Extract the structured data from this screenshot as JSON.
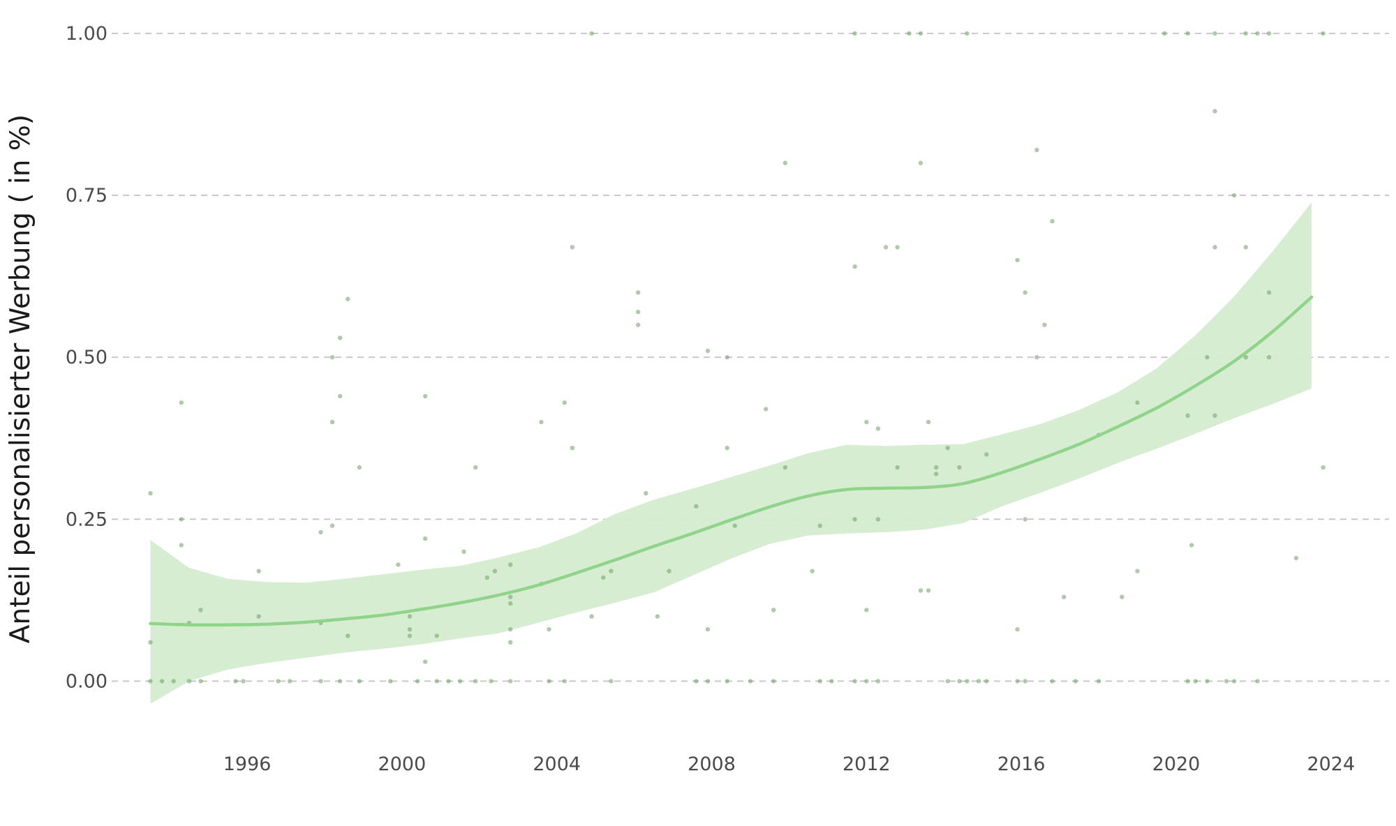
{
  "chart_data": {
    "type": "scatter",
    "title": "",
    "xlabel": "",
    "ylabel": "Anteil personalisierter Werbung ( in %)",
    "xlim": [
      1992.5,
      2025.5
    ],
    "ylim": [
      -0.09,
      1.03
    ],
    "x_ticks": [
      1996,
      2000,
      2004,
      2008,
      2012,
      2016,
      2020,
      2024
    ],
    "x_tick_labels": [
      "1996",
      "2000",
      "2004",
      "2008",
      "2012",
      "2016",
      "2020",
      "2024"
    ],
    "y_ticks": [
      0,
      0.25,
      0.5,
      0.75,
      1.0
    ],
    "y_tick_labels": [
      "0.00",
      "0.25",
      "0.50",
      "0.75",
      "1.00"
    ],
    "grid": "horizontal dashed",
    "legend": "none",
    "colors": {
      "points": "#6e9e64",
      "smooth_line": "#8fd48a",
      "confidence_band": "#d4ecd0",
      "grid": "#c8c8c8"
    },
    "points": [
      {
        "x": 1993.5,
        "y": 0.29
      },
      {
        "x": 1993.5,
        "y": 0.06
      },
      {
        "x": 1993.5,
        "y": 0
      },
      {
        "x": 1993.8,
        "y": 0
      },
      {
        "x": 1994.1,
        "y": 0
      },
      {
        "x": 1994.3,
        "y": 0.43
      },
      {
        "x": 1994.3,
        "y": 0.25
      },
      {
        "x": 1994.3,
        "y": 0.21
      },
      {
        "x": 1994.5,
        "y": 0.09
      },
      {
        "x": 1994.5,
        "y": 0
      },
      {
        "x": 1994.8,
        "y": 0.11
      },
      {
        "x": 1994.8,
        "y": 0
      },
      {
        "x": 1995.7,
        "y": 0
      },
      {
        "x": 1995.9,
        "y": 0
      },
      {
        "x": 1996.3,
        "y": 0.17
      },
      {
        "x": 1996.3,
        "y": 0.1
      },
      {
        "x": 1996.8,
        "y": 0
      },
      {
        "x": 1997.1,
        "y": 0
      },
      {
        "x": 1997.9,
        "y": 0.23
      },
      {
        "x": 1997.9,
        "y": 0.09
      },
      {
        "x": 1997.9,
        "y": 0
      },
      {
        "x": 1998.2,
        "y": 0.5
      },
      {
        "x": 1998.2,
        "y": 0.4
      },
      {
        "x": 1998.2,
        "y": 0.24
      },
      {
        "x": 1998.4,
        "y": 0.53
      },
      {
        "x": 1998.4,
        "y": 0.44
      },
      {
        "x": 1998.4,
        "y": 0
      },
      {
        "x": 1998.6,
        "y": 0.59
      },
      {
        "x": 1998.6,
        "y": 0.07
      },
      {
        "x": 1998.9,
        "y": 0.33
      },
      {
        "x": 1998.9,
        "y": 0
      },
      {
        "x": 1999.7,
        "y": 0
      },
      {
        "x": 1999.9,
        "y": 0.18
      },
      {
        "x": 2000.2,
        "y": 0.1
      },
      {
        "x": 2000.2,
        "y": 0.08
      },
      {
        "x": 2000.2,
        "y": 0.07
      },
      {
        "x": 2000.4,
        "y": 0
      },
      {
        "x": 2000.6,
        "y": 0.44
      },
      {
        "x": 2000.6,
        "y": 0.22
      },
      {
        "x": 2000.6,
        "y": 0.03
      },
      {
        "x": 2000.9,
        "y": 0.07
      },
      {
        "x": 2000.9,
        "y": 0
      },
      {
        "x": 2001.2,
        "y": 0
      },
      {
        "x": 2001.5,
        "y": 0
      },
      {
        "x": 2001.6,
        "y": 0.2
      },
      {
        "x": 2001.9,
        "y": 0.33
      },
      {
        "x": 2001.9,
        "y": 0
      },
      {
        "x": 2002.2,
        "y": 0.16
      },
      {
        "x": 2002.4,
        "y": 0.17
      },
      {
        "x": 2002.3,
        "y": 0
      },
      {
        "x": 2002.8,
        "y": 0.18
      },
      {
        "x": 2002.8,
        "y": 0.13
      },
      {
        "x": 2002.8,
        "y": 0.12
      },
      {
        "x": 2002.8,
        "y": 0.08
      },
      {
        "x": 2002.8,
        "y": 0.06
      },
      {
        "x": 2002.8,
        "y": 0
      },
      {
        "x": 2003.6,
        "y": 0.4
      },
      {
        "x": 2003.6,
        "y": 0.15
      },
      {
        "x": 2003.8,
        "y": 0.08
      },
      {
        "x": 2003.8,
        "y": 0
      },
      {
        "x": 2004.2,
        "y": 0.43
      },
      {
        "x": 2004.2,
        "y": 0
      },
      {
        "x": 2004.4,
        "y": 0.67
      },
      {
        "x": 2004.4,
        "y": 0.36
      },
      {
        "x": 2004.9,
        "y": 1.0
      },
      {
        "x": 2004.9,
        "y": 0.1
      },
      {
        "x": 2005.2,
        "y": 0.16
      },
      {
        "x": 2005.4,
        "y": 0.17
      },
      {
        "x": 2005.4,
        "y": 0
      },
      {
        "x": 2006.1,
        "y": 0.6
      },
      {
        "x": 2006.1,
        "y": 0.57
      },
      {
        "x": 2006.1,
        "y": 0.55
      },
      {
        "x": 2006.3,
        "y": 0.29
      },
      {
        "x": 2006.6,
        "y": 0.1
      },
      {
        "x": 2006.9,
        "y": 0.17
      },
      {
        "x": 2007.6,
        "y": 0.27
      },
      {
        "x": 2007.6,
        "y": 0
      },
      {
        "x": 2007.9,
        "y": 0.51
      },
      {
        "x": 2007.9,
        "y": 0.08
      },
      {
        "x": 2007.9,
        "y": 0
      },
      {
        "x": 2008.4,
        "y": 0.5
      },
      {
        "x": 2008.4,
        "y": 0.36
      },
      {
        "x": 2008.4,
        "y": 0
      },
      {
        "x": 2008.6,
        "y": 0.24
      },
      {
        "x": 2009.0,
        "y": 0
      },
      {
        "x": 2009.4,
        "y": 0.42
      },
      {
        "x": 2009.6,
        "y": 0.11
      },
      {
        "x": 2009.6,
        "y": 0
      },
      {
        "x": 2009.9,
        "y": 0.8
      },
      {
        "x": 2009.9,
        "y": 0.33
      },
      {
        "x": 2010.6,
        "y": 0.17
      },
      {
        "x": 2010.8,
        "y": 0.24
      },
      {
        "x": 2010.8,
        "y": 0
      },
      {
        "x": 2011.1,
        "y": 0
      },
      {
        "x": 2011.7,
        "y": 1.0
      },
      {
        "x": 2011.7,
        "y": 0.64
      },
      {
        "x": 2011.7,
        "y": 0.25
      },
      {
        "x": 2011.7,
        "y": 0
      },
      {
        "x": 2012.0,
        "y": 0.4
      },
      {
        "x": 2012.0,
        "y": 0.11
      },
      {
        "x": 2012.0,
        "y": 0
      },
      {
        "x": 2012.3,
        "y": 0.39
      },
      {
        "x": 2012.3,
        "y": 0.25
      },
      {
        "x": 2012.3,
        "y": 0
      },
      {
        "x": 2012.5,
        "y": 0.67
      },
      {
        "x": 2012.8,
        "y": 0.67
      },
      {
        "x": 2012.8,
        "y": 0.33
      },
      {
        "x": 2013.1,
        "y": 1.0
      },
      {
        "x": 2013.4,
        "y": 1.0
      },
      {
        "x": 2013.4,
        "y": 0.8
      },
      {
        "x": 2013.4,
        "y": 0.14
      },
      {
        "x": 2013.6,
        "y": 0.4
      },
      {
        "x": 2013.6,
        "y": 0.14
      },
      {
        "x": 2013.8,
        "y": 0.33
      },
      {
        "x": 2013.8,
        "y": 0.32
      },
      {
        "x": 2014.1,
        "y": 0.36
      },
      {
        "x": 2014.1,
        "y": 0
      },
      {
        "x": 2014.4,
        "y": 0.33
      },
      {
        "x": 2014.4,
        "y": 0
      },
      {
        "x": 2014.6,
        "y": 1.0
      },
      {
        "x": 2014.6,
        "y": 0
      },
      {
        "x": 2014.9,
        "y": 0
      },
      {
        "x": 2015.1,
        "y": 0.35
      },
      {
        "x": 2015.1,
        "y": 0
      },
      {
        "x": 2015.9,
        "y": 0.65
      },
      {
        "x": 2015.9,
        "y": 0.08
      },
      {
        "x": 2015.9,
        "y": 0
      },
      {
        "x": 2016.1,
        "y": 0.6
      },
      {
        "x": 2016.1,
        "y": 0.25
      },
      {
        "x": 2016.1,
        "y": 0
      },
      {
        "x": 2016.4,
        "y": 0.82
      },
      {
        "x": 2016.4,
        "y": 0.5
      },
      {
        "x": 2016.6,
        "y": 0.55
      },
      {
        "x": 2016.8,
        "y": 0.71
      },
      {
        "x": 2016.8,
        "y": 0
      },
      {
        "x": 2017.1,
        "y": 0.13
      },
      {
        "x": 2017.4,
        "y": 0
      },
      {
        "x": 2018.0,
        "y": 0.38
      },
      {
        "x": 2018.0,
        "y": 0
      },
      {
        "x": 2018.6,
        "y": 0.13
      },
      {
        "x": 2019.0,
        "y": 0.43
      },
      {
        "x": 2019.0,
        "y": 0.17
      },
      {
        "x": 2019.7,
        "y": 1.0
      },
      {
        "x": 2020.3,
        "y": 1.0
      },
      {
        "x": 2020.3,
        "y": 0.41
      },
      {
        "x": 2020.3,
        "y": 0
      },
      {
        "x": 2020.4,
        "y": 0.21
      },
      {
        "x": 2020.5,
        "y": 0
      },
      {
        "x": 2020.8,
        "y": 0.5
      },
      {
        "x": 2020.8,
        "y": 0
      },
      {
        "x": 2021.0,
        "y": 1.0
      },
      {
        "x": 2021.0,
        "y": 0.88
      },
      {
        "x": 2021.0,
        "y": 0.67
      },
      {
        "x": 2021.0,
        "y": 0.41
      },
      {
        "x": 2021.3,
        "y": 0
      },
      {
        "x": 2021.5,
        "y": 0.75
      },
      {
        "x": 2021.5,
        "y": 0
      },
      {
        "x": 2021.8,
        "y": 1.0
      },
      {
        "x": 2021.8,
        "y": 0.67
      },
      {
        "x": 2021.8,
        "y": 0.5
      },
      {
        "x": 2022.1,
        "y": 1.0
      },
      {
        "x": 2022.1,
        "y": 0
      },
      {
        "x": 2022.4,
        "y": 1.0
      },
      {
        "x": 2022.4,
        "y": 0.6
      },
      {
        "x": 2022.4,
        "y": 0.5
      },
      {
        "x": 2023.1,
        "y": 0.19
      },
      {
        "x": 2023.8,
        "y": 1.0
      },
      {
        "x": 2023.8,
        "y": 0.33
      }
    ],
    "smooth": {
      "x": [
        1993.5,
        1994.5,
        1995.5,
        1996.5,
        1997.5,
        1998.5,
        1999.5,
        2000.5,
        2001.5,
        2002.5,
        2003.5,
        2004.5,
        2005.5,
        2006.5,
        2007.5,
        2008.5,
        2009.5,
        2010.5,
        2011.5,
        2012.5,
        2013.5,
        2014.5,
        2015.5,
        2016.5,
        2017.5,
        2018.5,
        2019.5,
        2020.5,
        2021.5,
        2022.5,
        2023.5
      ],
      "y": [
        0.089,
        0.087,
        0.087,
        0.088,
        0.091,
        0.096,
        0.102,
        0.111,
        0.121,
        0.133,
        0.148,
        0.167,
        0.187,
        0.208,
        0.228,
        0.249,
        0.269,
        0.286,
        0.296,
        0.298,
        0.299,
        0.305,
        0.322,
        0.343,
        0.366,
        0.393,
        0.422,
        0.456,
        0.494,
        0.54,
        0.593
      ],
      "lower": [
        -0.035,
        0.0,
        0.018,
        0.028,
        0.036,
        0.044,
        0.05,
        0.057,
        0.066,
        0.074,
        0.09,
        0.106,
        0.121,
        0.137,
        0.163,
        0.189,
        0.212,
        0.225,
        0.228,
        0.23,
        0.234,
        0.244,
        0.27,
        0.291,
        0.313,
        0.337,
        0.359,
        0.382,
        0.406,
        0.428,
        0.452
      ],
      "upper": [
        0.218,
        0.175,
        0.158,
        0.153,
        0.152,
        0.158,
        0.165,
        0.172,
        0.178,
        0.191,
        0.206,
        0.228,
        0.258,
        0.28,
        0.297,
        0.315,
        0.333,
        0.352,
        0.365,
        0.363,
        0.365,
        0.366,
        0.381,
        0.397,
        0.419,
        0.446,
        0.483,
        0.534,
        0.594,
        0.664,
        0.739
      ]
    }
  }
}
